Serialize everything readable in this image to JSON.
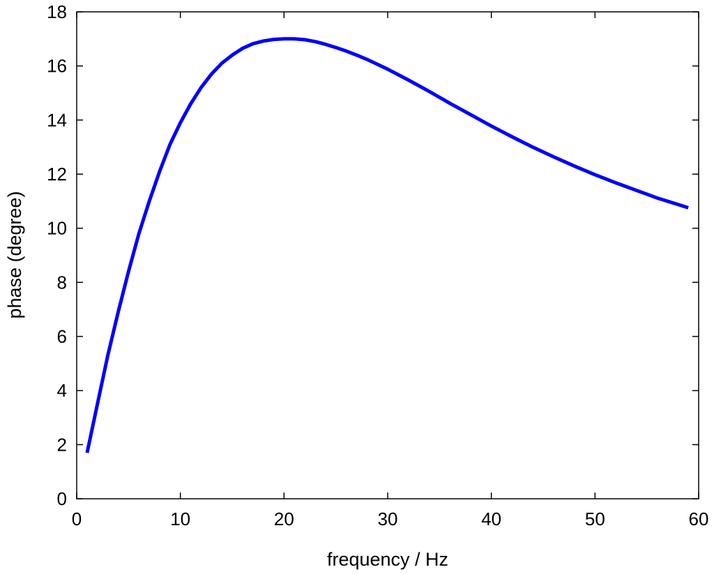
{
  "chart_data": {
    "type": "line",
    "title": "",
    "xlabel": "frequency / Hz",
    "ylabel": "phase (degree)",
    "xlim": [
      0,
      60
    ],
    "ylim": [
      0,
      18
    ],
    "xticks": [
      0,
      10,
      20,
      30,
      40,
      50,
      60
    ],
    "yticks": [
      0,
      2,
      4,
      6,
      8,
      10,
      12,
      14,
      16,
      18
    ],
    "grid": false,
    "legend": "none",
    "series": [
      {
        "color": "#0000ff",
        "x": [
          1,
          2,
          3,
          4,
          5,
          6,
          7,
          8,
          9,
          10,
          11,
          12,
          13,
          14,
          15,
          16,
          17,
          18,
          19,
          20,
          21,
          22,
          23,
          24,
          25,
          26,
          27,
          28,
          29,
          30,
          32,
          34,
          36,
          38,
          40,
          42,
          44,
          46,
          48,
          50,
          52,
          54,
          56,
          58,
          59
        ],
        "y": [
          1.7,
          3.5,
          5.3,
          6.9,
          8.4,
          9.8,
          11.0,
          12.1,
          13.1,
          13.9,
          14.6,
          15.2,
          15.7,
          16.1,
          16.4,
          16.65,
          16.82,
          16.92,
          16.98,
          17.0,
          17.0,
          16.97,
          16.9,
          16.8,
          16.68,
          16.55,
          16.4,
          16.24,
          16.06,
          15.88,
          15.48,
          15.06,
          14.62,
          14.2,
          13.78,
          13.38,
          13.0,
          12.64,
          12.3,
          11.98,
          11.68,
          11.4,
          11.12,
          10.88,
          10.76
        ]
      }
    ]
  }
}
